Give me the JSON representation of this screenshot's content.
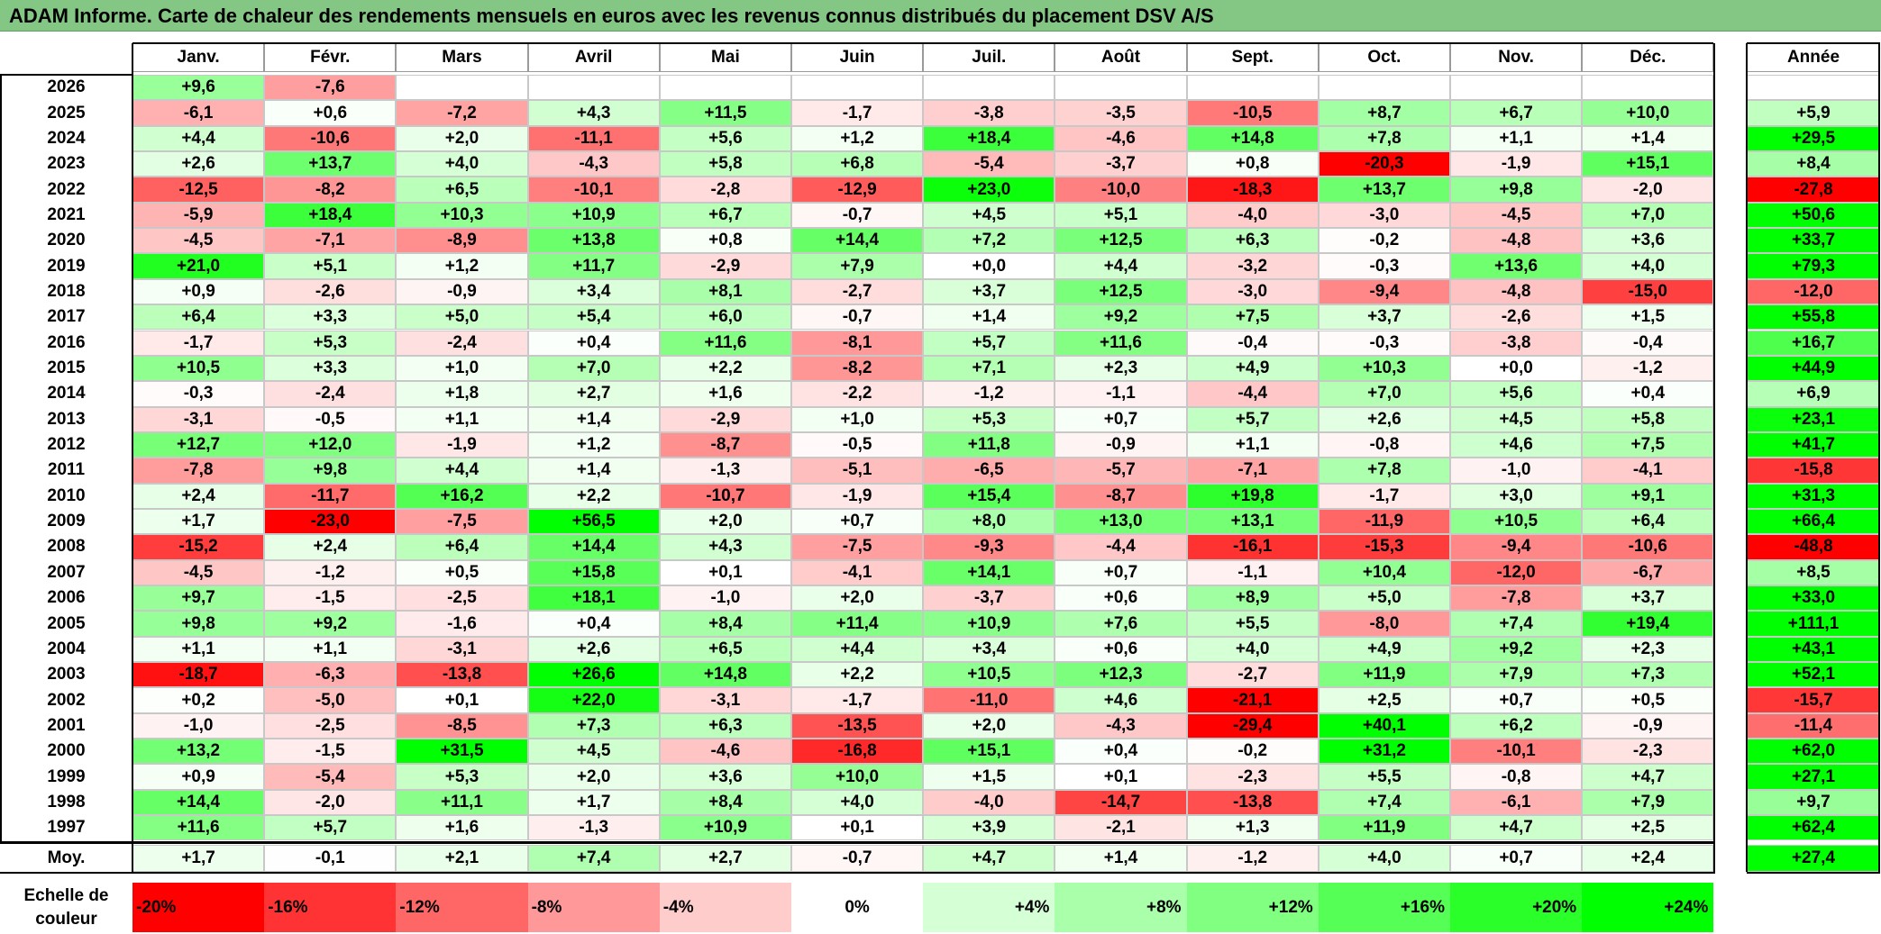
{
  "title": "ADAM Informe. Carte de chaleur des rendements mensuels en euros avec les revenus connus distribués du placement DSV A/S",
  "colors": {
    "title_bg": "#84c784",
    "max_red": "#ff0000",
    "max_green": "#00ff00"
  },
  "chart_data": {
    "type": "heatmap",
    "months": [
      "Janv.",
      "Févr.",
      "Mars",
      "Avril",
      "Mai",
      "Juin",
      "Juil.",
      "Août",
      "Sept.",
      "Oct.",
      "Nov.",
      "Déc."
    ],
    "year_header": "Année",
    "rows": [
      {
        "year": "2026",
        "months": [
          "+9,6",
          "-7,6",
          "",
          "",
          "",
          "",
          "",
          "",
          "",
          "",
          "",
          ""
        ],
        "annual": ""
      },
      {
        "year": "2025",
        "months": [
          "-6,1",
          "+0,6",
          "-7,2",
          "+4,3",
          "+11,5",
          "-1,7",
          "-3,8",
          "-3,5",
          "-10,5",
          "+8,7",
          "+6,7",
          "+10,0"
        ],
        "annual": "+5,9"
      },
      {
        "year": "2024",
        "months": [
          "+4,4",
          "-10,6",
          "+2,0",
          "-11,1",
          "+5,6",
          "+1,2",
          "+18,4",
          "-4,6",
          "+14,8",
          "+7,8",
          "+1,1",
          "+1,4"
        ],
        "annual": "+29,5"
      },
      {
        "year": "2023",
        "months": [
          "+2,6",
          "+13,7",
          "+4,0",
          "-4,3",
          "+5,8",
          "+6,8",
          "-5,4",
          "-3,7",
          "+0,8",
          "-20,3",
          "-1,9",
          "+15,1"
        ],
        "annual": "+8,4"
      },
      {
        "year": "2022",
        "months": [
          "-12,5",
          "-8,2",
          "+6,5",
          "-10,1",
          "-2,8",
          "-12,9",
          "+23,0",
          "-10,0",
          "-18,3",
          "+13,7",
          "+9,8",
          "-2,0"
        ],
        "annual": "-27,8"
      },
      {
        "year": "2021",
        "months": [
          "-5,9",
          "+18,4",
          "+10,3",
          "+10,9",
          "+6,7",
          "-0,7",
          "+4,5",
          "+5,1",
          "-4,0",
          "-3,0",
          "-4,5",
          "+7,0"
        ],
        "annual": "+50,6"
      },
      {
        "year": "2020",
        "months": [
          "-4,5",
          "-7,1",
          "-8,9",
          "+13,8",
          "+0,8",
          "+14,4",
          "+7,2",
          "+12,5",
          "+6,3",
          "-0,2",
          "-4,8",
          "+3,6"
        ],
        "annual": "+33,7"
      },
      {
        "year": "2019",
        "months": [
          "+21,0",
          "+5,1",
          "+1,2",
          "+11,7",
          "-2,9",
          "+7,9",
          "+0,0",
          "+4,4",
          "-3,2",
          "-0,3",
          "+13,6",
          "+4,0"
        ],
        "annual": "+79,3"
      },
      {
        "year": "2018",
        "months": [
          "+0,9",
          "-2,6",
          "-0,9",
          "+3,4",
          "+8,1",
          "-2,7",
          "+3,7",
          "+12,5",
          "-3,0",
          "-9,4",
          "-4,8",
          "-15,0"
        ],
        "annual": "-12,0"
      },
      {
        "year": "2017",
        "months": [
          "+6,4",
          "+3,3",
          "+5,0",
          "+5,4",
          "+6,0",
          "-0,7",
          "+1,4",
          "+9,2",
          "+7,5",
          "+3,7",
          "-2,6",
          "+1,5"
        ],
        "annual": "+55,8"
      },
      {
        "year": "2016",
        "months": [
          "-1,7",
          "+5,3",
          "-2,4",
          "+0,4",
          "+11,6",
          "-8,1",
          "+5,7",
          "+11,6",
          "-0,4",
          "-0,3",
          "-3,8",
          "-0,4"
        ],
        "annual": "+16,7"
      },
      {
        "year": "2015",
        "months": [
          "+10,5",
          "+3,3",
          "+1,0",
          "+7,0",
          "+2,2",
          "-8,2",
          "+7,1",
          "+2,3",
          "+4,9",
          "+10,3",
          "+0,0",
          "-1,2"
        ],
        "annual": "+44,9"
      },
      {
        "year": "2014",
        "months": [
          "-0,3",
          "-2,4",
          "+1,8",
          "+2,7",
          "+1,6",
          "-2,2",
          "-1,2",
          "-1,1",
          "-4,4",
          "+7,0",
          "+5,6",
          "+0,4"
        ],
        "annual": "+6,9"
      },
      {
        "year": "2013",
        "months": [
          "-3,1",
          "-0,5",
          "+1,1",
          "+1,4",
          "-2,9",
          "+1,0",
          "+5,3",
          "+0,7",
          "+5,7",
          "+2,6",
          "+4,5",
          "+5,8"
        ],
        "annual": "+23,1"
      },
      {
        "year": "2012",
        "months": [
          "+12,7",
          "+12,0",
          "-1,9",
          "+1,2",
          "-8,7",
          "-0,5",
          "+11,8",
          "-0,9",
          "+1,1",
          "-0,8",
          "+4,6",
          "+7,5"
        ],
        "annual": "+41,7"
      },
      {
        "year": "2011",
        "months": [
          "-7,8",
          "+9,8",
          "+4,4",
          "+1,4",
          "-1,3",
          "-5,1",
          "-6,5",
          "-5,7",
          "-7,1",
          "+7,8",
          "-1,0",
          "-4,1"
        ],
        "annual": "-15,8"
      },
      {
        "year": "2010",
        "months": [
          "+2,4",
          "-11,7",
          "+16,2",
          "+2,2",
          "-10,7",
          "-1,9",
          "+15,4",
          "-8,7",
          "+19,8",
          "-1,7",
          "+3,0",
          "+9,1"
        ],
        "annual": "+31,3"
      },
      {
        "year": "2009",
        "months": [
          "+1,7",
          "-23,0",
          "-7,5",
          "+56,5",
          "+2,0",
          "+0,7",
          "+8,0",
          "+13,0",
          "+13,1",
          "-11,9",
          "+10,5",
          "+6,4"
        ],
        "annual": "+66,4"
      },
      {
        "year": "2008",
        "months": [
          "-15,2",
          "+2,4",
          "+6,4",
          "+14,4",
          "+4,3",
          "-7,5",
          "-9,3",
          "-4,4",
          "-16,1",
          "-15,3",
          "-9,4",
          "-10,6"
        ],
        "annual": "-48,8"
      },
      {
        "year": "2007",
        "months": [
          "-4,5",
          "-1,2",
          "+0,5",
          "+15,8",
          "+0,1",
          "-4,1",
          "+14,1",
          "+0,7",
          "-1,1",
          "+10,4",
          "-12,0",
          "-6,7"
        ],
        "annual": "+8,5"
      },
      {
        "year": "2006",
        "months": [
          "+9,7",
          "-1,5",
          "-2,5",
          "+18,1",
          "-1,0",
          "+2,0",
          "-3,7",
          "+0,6",
          "+8,9",
          "+5,0",
          "-7,8",
          "+3,7"
        ],
        "annual": "+33,0"
      },
      {
        "year": "2005",
        "months": [
          "+9,8",
          "+9,2",
          "-1,6",
          "+0,4",
          "+8,4",
          "+11,4",
          "+10,9",
          "+7,6",
          "+5,5",
          "-8,0",
          "+7,4",
          "+19,4"
        ],
        "annual": "+111,1"
      },
      {
        "year": "2004",
        "months": [
          "+1,1",
          "+1,1",
          "-3,1",
          "+2,6",
          "+6,5",
          "+4,4",
          "+3,4",
          "+0,6",
          "+4,0",
          "+4,9",
          "+9,2",
          "+2,3"
        ],
        "annual": "+43,1"
      },
      {
        "year": "2003",
        "months": [
          "-18,7",
          "-6,3",
          "-13,8",
          "+26,6",
          "+14,8",
          "+2,2",
          "+10,5",
          "+12,3",
          "-2,7",
          "+11,9",
          "+7,9",
          "+7,3"
        ],
        "annual": "+52,1"
      },
      {
        "year": "2002",
        "months": [
          "+0,2",
          "-5,0",
          "+0,1",
          "+22,0",
          "-3,1",
          "-1,7",
          "-11,0",
          "+4,6",
          "-21,1",
          "+2,5",
          "+0,7",
          "+0,5"
        ],
        "annual": "-15,7"
      },
      {
        "year": "2001",
        "months": [
          "-1,0",
          "-2,5",
          "-8,5",
          "+7,3",
          "+6,3",
          "-13,5",
          "+2,0",
          "-4,3",
          "-29,4",
          "+40,1",
          "+6,2",
          "-0,9"
        ],
        "annual": "-11,4"
      },
      {
        "year": "2000",
        "months": [
          "+13,2",
          "-1,5",
          "+31,5",
          "+4,5",
          "-4,6",
          "-16,8",
          "+15,1",
          "+0,4",
          "-0,2",
          "+31,2",
          "-10,1",
          "-2,3"
        ],
        "annual": "+62,0"
      },
      {
        "year": "1999",
        "months": [
          "+0,9",
          "-5,4",
          "+5,3",
          "+2,0",
          "+3,6",
          "+10,0",
          "+1,5",
          "+0,1",
          "-2,3",
          "+5,5",
          "-0,8",
          "+4,7"
        ],
        "annual": "+27,1"
      },
      {
        "year": "1998",
        "months": [
          "+14,4",
          "-2,0",
          "+11,1",
          "+1,7",
          "+8,4",
          "+4,0",
          "-4,0",
          "-14,7",
          "-13,8",
          "+7,4",
          "-6,1",
          "+7,9"
        ],
        "annual": "+9,7"
      },
      {
        "year": "1997",
        "months": [
          "+11,6",
          "+5,7",
          "+1,6",
          "-1,3",
          "+10,9",
          "+0,1",
          "+3,9",
          "-2,1",
          "+1,3",
          "+11,9",
          "+4,7",
          "+2,5"
        ],
        "annual": "+62,4"
      }
    ],
    "average": {
      "label": "Moy.",
      "months": [
        "+1,7",
        "-0,1",
        "+2,1",
        "+7,4",
        "+2,7",
        "-0,7",
        "+4,7",
        "+1,4",
        "-1,2",
        "+4,0",
        "+0,7",
        "+2,4"
      ],
      "annual": "+27,4"
    },
    "scale": {
      "label_line1": "Echelle de",
      "label_line2": "couleur",
      "ticks": [
        "-20%",
        "-16%",
        "-12%",
        "-8%",
        "-4%",
        "0%",
        "+4%",
        "+8%",
        "+12%",
        "+16%",
        "+20%",
        "+24%"
      ],
      "tick_values": [
        -20,
        -16,
        -12,
        -8,
        -4,
        0,
        4,
        8,
        12,
        16,
        20,
        24
      ]
    },
    "color_range": {
      "min": -20,
      "max": 24
    }
  }
}
